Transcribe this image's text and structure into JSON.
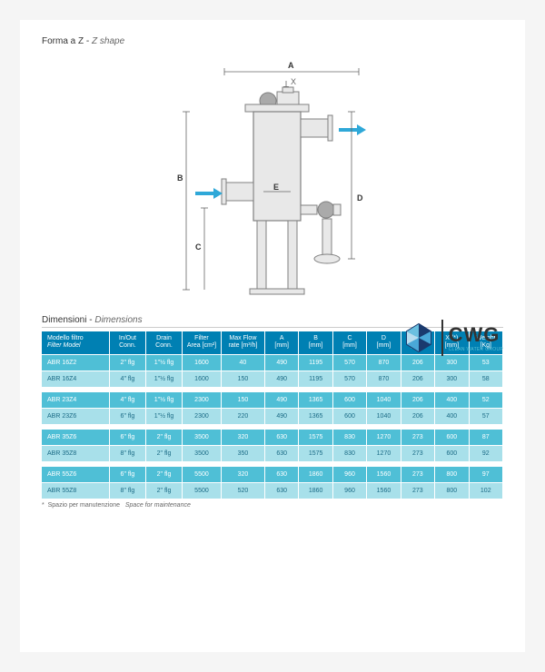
{
  "shape_title": {
    "label": "Forma a Z",
    "sep": " - ",
    "italic": "Z shape"
  },
  "diagram": {
    "labels": {
      "A": "A",
      "B": "B",
      "C": "C",
      "D": "D",
      "E": "E",
      "X": "X"
    },
    "colors": {
      "outline": "#808080",
      "fill": "#e8e8e8",
      "arrow": "#2fa8d8",
      "dim_line": "#666"
    }
  },
  "logo": {
    "text": "CWG",
    "sub": "CLEAN WATER GROUP"
  },
  "dim_title": {
    "label": "Dimensioni",
    "sep": " - ",
    "italic": "Dimensions"
  },
  "table": {
    "headers": [
      {
        "l1": "Modello filtro",
        "l2": "Filter Model"
      },
      {
        "l1": "In/Out",
        "l2": "Conn."
      },
      {
        "l1": "Drain",
        "l2": "Conn."
      },
      {
        "l1": "Filter",
        "l2": "Area [cm²]"
      },
      {
        "l1": "Max Flow",
        "l2": "rate [m³/h]"
      },
      {
        "l1": "A",
        "l2": "[mm]"
      },
      {
        "l1": "B",
        "l2": "[mm]"
      },
      {
        "l1": "C",
        "l2": "[mm]"
      },
      {
        "l1": "D",
        "l2": "[mm]"
      },
      {
        "l1": "E",
        "l2": "[mm]"
      },
      {
        "l1": "X (*)",
        "l2": "[mm]"
      },
      {
        "l1": "Weight",
        "l2": "[Kg]"
      }
    ],
    "groups": [
      [
        [
          "ABR 16Z2",
          "2\" flg",
          "1\"½ flg",
          "1600",
          "40",
          "490",
          "1195",
          "570",
          "870",
          "206",
          "300",
          "53"
        ],
        [
          "ABR 16Z4",
          "4\" flg",
          "1\"½ flg",
          "1600",
          "150",
          "490",
          "1195",
          "570",
          "870",
          "206",
          "300",
          "58"
        ]
      ],
      [
        [
          "ABR 23Z4",
          "4\" flg",
          "1\"½ flg",
          "2300",
          "150",
          "490",
          "1365",
          "600",
          "1040",
          "206",
          "400",
          "52"
        ],
        [
          "ABR 23Z6",
          "6\" flg",
          "1\"½ flg",
          "2300",
          "220",
          "490",
          "1365",
          "600",
          "1040",
          "206",
          "400",
          "57"
        ]
      ],
      [
        [
          "ABR 35Z6",
          "6\" flg",
          "2\" flg",
          "3500",
          "320",
          "630",
          "1575",
          "830",
          "1270",
          "273",
          "600",
          "87"
        ],
        [
          "ABR 35Z8",
          "8\" flg",
          "2\" flg",
          "3500",
          "350",
          "630",
          "1575",
          "830",
          "1270",
          "273",
          "600",
          "92"
        ]
      ],
      [
        [
          "ABR 55Z6",
          "6\" flg",
          "2\" flg",
          "5500",
          "320",
          "630",
          "1860",
          "960",
          "1560",
          "273",
          "800",
          "97"
        ],
        [
          "ABR 55Z8",
          "8\" flg",
          "2\" flg",
          "5500",
          "520",
          "630",
          "1860",
          "960",
          "1560",
          "273",
          "800",
          "102"
        ]
      ]
    ],
    "col_widths": [
      "14%",
      "7.5%",
      "7.5%",
      "8%",
      "9%",
      "7%",
      "7%",
      "7%",
      "7%",
      "7%",
      "7%",
      "7%"
    ]
  },
  "footnote": {
    "star": "*",
    "label": "Spazio per manutenzione",
    "italic": "Space for maintenance"
  }
}
